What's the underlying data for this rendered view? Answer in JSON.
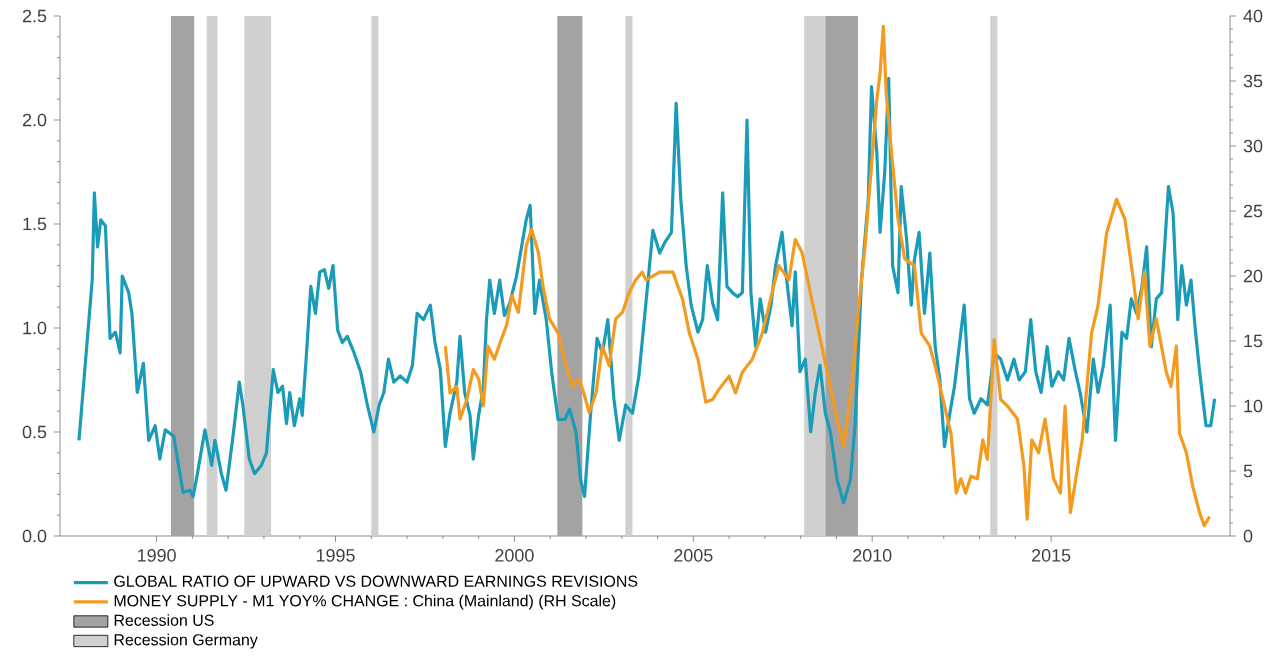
{
  "chart_data": {
    "type": "line",
    "xlim": [
      1987.3,
      2020
    ],
    "xticks": [
      1990,
      1995,
      2000,
      2005,
      2010,
      2015
    ],
    "ylim": [
      0,
      2.5
    ],
    "yticks": [
      {
        "value": 0,
        "label": "0.0"
      },
      {
        "value": 0.5,
        "label": "0.5"
      },
      {
        "value": 1,
        "label": "1.0"
      },
      {
        "value": 1.5,
        "label": "1.5"
      },
      {
        "value": 2,
        "label": "2.0"
      },
      {
        "value": 2.5,
        "label": "2.5"
      }
    ],
    "y2lim": [
      0,
      40
    ],
    "y2ticks": [
      0,
      5,
      10,
      15,
      20,
      25,
      30,
      35,
      40
    ],
    "legend": "bottom",
    "grid": false,
    "series": [
      {
        "name": "GLOBAL RATIO OF UPWARD VS DOWNWARD EARNINGS REVISIONS",
        "color": "#1a9bb8",
        "axis": "y",
        "x": [
          1987.83,
          1988.2,
          1988.26,
          1988.35,
          1988.44,
          1988.57,
          1988.7,
          1988.85,
          1988.98,
          1989.04,
          1989.22,
          1989.31,
          1989.46,
          1989.63,
          1989.78,
          1989.96,
          1990.09,
          1990.24,
          1990.48,
          1990.61,
          1990.74,
          1990.93,
          1991.02,
          1991.11,
          1991.35,
          1991.54,
          1991.63,
          1991.81,
          1991.94,
          1992.15,
          1992.31,
          1992.41,
          1992.59,
          1992.74,
          1992.93,
          1993.07,
          1993.26,
          1993.39,
          1993.52,
          1993.63,
          1993.72,
          1993.85,
          1994.0,
          1994.07,
          1994.19,
          1994.31,
          1994.44,
          1994.56,
          1994.69,
          1994.81,
          1994.93,
          1995.06,
          1995.19,
          1995.33,
          1995.52,
          1995.7,
          1995.89,
          1996.07,
          1996.22,
          1996.35,
          1996.48,
          1996.63,
          1996.81,
          1997.0,
          1997.15,
          1997.28,
          1997.46,
          1997.65,
          1997.78,
          1997.93,
          1998.07,
          1998.2,
          1998.39,
          1998.48,
          1998.61,
          1998.76,
          1998.85,
          1999.0,
          1999.13,
          1999.22,
          1999.31,
          1999.44,
          1999.59,
          1999.72,
          1999.87,
          2000.06,
          2000.33,
          2000.44,
          2000.57,
          2000.7,
          2000.89,
          2001.04,
          2001.22,
          2001.41,
          2001.54,
          2001.72,
          2001.85,
          2001.96,
          2002.13,
          2002.31,
          2002.46,
          2002.61,
          2002.78,
          2002.93,
          2003.11,
          2003.3,
          2003.48,
          2003.87,
          2004.06,
          2004.2,
          2004.39,
          2004.52,
          2004.65,
          2004.8,
          2004.94,
          2005.13,
          2005.26,
          2005.39,
          2005.54,
          2005.68,
          2005.82,
          2005.94,
          2006.09,
          2006.24,
          2006.37,
          2006.5,
          2006.61,
          2006.74,
          2006.87,
          2007.02,
          2007.17,
          2007.3,
          2007.48,
          2007.61,
          2007.76,
          2007.85,
          2007.98,
          2008.13,
          2008.28,
          2008.41,
          2008.54,
          2008.69,
          2008.83,
          2009.02,
          2009.2,
          2009.39,
          2009.52,
          2009.7,
          2009.89,
          2009.98,
          2010.13,
          2010.22,
          2010.35,
          2010.46,
          2010.57,
          2010.72,
          2010.81,
          2010.96,
          2011.09,
          2011.18,
          2011.31,
          2011.46,
          2011.61,
          2011.76,
          2011.89,
          2012.02,
          2012.17,
          2012.3,
          2012.43,
          2012.57,
          2012.72,
          2012.85,
          2013.04,
          2013.22,
          2013.41,
          2013.59,
          2013.78,
          2013.96,
          2014.11,
          2014.28,
          2014.43,
          2014.57,
          2014.72,
          2014.89,
          2015.02,
          2015.2,
          2015.35,
          2015.5,
          2015.68,
          2015.81,
          2016.0,
          2016.18,
          2016.31,
          2016.46,
          2016.65,
          2016.8,
          2016.98,
          2017.11,
          2017.24,
          2017.39,
          2017.54,
          2017.67,
          2017.8,
          2017.94,
          2018.09,
          2018.28,
          2018.41,
          2018.54,
          2018.65,
          2018.78,
          2018.91,
          2019.02,
          2019.15,
          2019.33,
          2019.46,
          2019.57
        ],
        "values": [
          0.46,
          1.23,
          1.65,
          1.39,
          1.52,
          1.49,
          0.95,
          0.98,
          0.88,
          1.25,
          1.17,
          1.07,
          0.69,
          0.83,
          0.46,
          0.53,
          0.37,
          0.51,
          0.48,
          0.34,
          0.21,
          0.22,
          0.19,
          0.27,
          0.51,
          0.34,
          0.46,
          0.3,
          0.22,
          0.5,
          0.74,
          0.63,
          0.37,
          0.3,
          0.34,
          0.4,
          0.8,
          0.69,
          0.72,
          0.54,
          0.69,
          0.53,
          0.66,
          0.58,
          0.88,
          1.2,
          1.07,
          1.27,
          1.28,
          1.19,
          1.3,
          0.99,
          0.93,
          0.96,
          0.88,
          0.79,
          0.63,
          0.5,
          0.63,
          0.69,
          0.85,
          0.74,
          0.77,
          0.74,
          0.82,
          1.07,
          1.04,
          1.11,
          0.93,
          0.8,
          0.43,
          0.59,
          0.74,
          0.96,
          0.69,
          0.58,
          0.37,
          0.58,
          0.71,
          1.04,
          1.23,
          1.07,
          1.23,
          1.06,
          1.12,
          1.25,
          1.52,
          1.59,
          1.07,
          1.23,
          1.04,
          0.79,
          0.56,
          0.56,
          0.61,
          0.5,
          0.27,
          0.19,
          0.59,
          0.95,
          0.88,
          1.04,
          0.66,
          0.46,
          0.63,
          0.59,
          0.77,
          1.47,
          1.36,
          1.41,
          1.46,
          2.08,
          1.62,
          1.3,
          1.11,
          0.98,
          1.04,
          1.3,
          1.12,
          1.04,
          1.65,
          1.2,
          1.17,
          1.15,
          1.17,
          2.0,
          1.17,
          0.91,
          1.14,
          0.98,
          1.11,
          1.3,
          1.46,
          1.23,
          1.01,
          1.27,
          0.79,
          0.85,
          0.5,
          0.69,
          0.82,
          0.59,
          0.5,
          0.27,
          0.16,
          0.27,
          0.53,
          1.23,
          1.62,
          2.16,
          1.84,
          1.46,
          1.75,
          2.2,
          1.3,
          1.17,
          1.68,
          1.43,
          1.11,
          1.33,
          1.46,
          1.07,
          1.36,
          0.91,
          0.75,
          0.43,
          0.59,
          0.72,
          0.91,
          1.11,
          0.66,
          0.59,
          0.66,
          0.63,
          0.88,
          0.85,
          0.75,
          0.85,
          0.75,
          0.79,
          1.04,
          0.79,
          0.69,
          0.91,
          0.72,
          0.79,
          0.75,
          0.95,
          0.79,
          0.69,
          0.5,
          0.85,
          0.69,
          0.82,
          1.11,
          0.46,
          0.98,
          0.95,
          1.14,
          1.07,
          1.2,
          1.39,
          0.91,
          1.14,
          1.17,
          1.68,
          1.55,
          1.04,
          1.3,
          1.11,
          1.23,
          1.01,
          0.79,
          0.53,
          0.53,
          0.66
        ]
      },
      {
        "name": "MONEY SUPPLY - M1 YOY% CHANGE : China (Mainland) (RH Scale)",
        "color": "#f39a1f",
        "axis": "y2",
        "x": [
          1998.07,
          1998.2,
          1998.39,
          1998.48,
          1998.67,
          1998.85,
          1999.0,
          1999.13,
          1999.26,
          1999.44,
          1999.63,
          1999.78,
          1999.93,
          2000.11,
          2000.33,
          2000.48,
          2000.67,
          2000.8,
          2000.98,
          2001.22,
          2001.44,
          2001.63,
          2001.81,
          2001.96,
          2002.09,
          2002.28,
          2002.46,
          2002.65,
          2002.83,
          2003.02,
          2003.2,
          2003.39,
          2003.57,
          2003.68,
          2004.06,
          2004.43,
          2004.7,
          2004.89,
          2005.13,
          2005.35,
          2005.54,
          2005.72,
          2006.0,
          2006.18,
          2006.37,
          2006.65,
          2006.93,
          2007.2,
          2007.39,
          2007.67,
          2007.85,
          2008.04,
          2008.31,
          2008.59,
          2008.83,
          2009.06,
          2009.2,
          2009.43,
          2009.61,
          2009.8,
          2009.98,
          2010.13,
          2010.22,
          2010.31,
          2010.39,
          2010.54,
          2010.72,
          2010.91,
          2011.18,
          2011.37,
          2011.61,
          2011.8,
          2012.02,
          2012.2,
          2012.35,
          2012.48,
          2012.61,
          2012.76,
          2012.94,
          2013.09,
          2013.22,
          2013.41,
          2013.59,
          2013.78,
          2014.06,
          2014.24,
          2014.33,
          2014.46,
          2014.65,
          2014.83,
          2015.07,
          2015.26,
          2015.39,
          2015.54,
          2015.69,
          2015.87,
          2016.13,
          2016.31,
          2016.55,
          2016.83,
          2017.06,
          2017.3,
          2017.43,
          2017.61,
          2017.76,
          2017.94,
          2018.22,
          2018.35,
          2018.5,
          2018.59,
          2018.78,
          2018.96,
          2019.15,
          2019.28,
          2019.43
        ],
        "values": [
          14.6,
          11.0,
          11.5,
          9.0,
          10.5,
          12.8,
          12.1,
          10.0,
          14.6,
          13.6,
          15.1,
          16.2,
          18.5,
          17.2,
          22.3,
          23.6,
          21.8,
          19.2,
          16.7,
          15.6,
          13.1,
          11.5,
          12.1,
          10.8,
          9.5,
          11.0,
          14.6,
          13.1,
          16.7,
          17.2,
          18.7,
          19.7,
          20.3,
          19.7,
          20.3,
          20.3,
          18.2,
          15.6,
          13.6,
          10.3,
          10.5,
          11.3,
          12.3,
          11.0,
          12.6,
          13.6,
          15.6,
          18.7,
          20.8,
          19.7,
          22.8,
          21.8,
          18.2,
          14.6,
          11.5,
          8.5,
          6.9,
          11.5,
          17.2,
          22.3,
          28.5,
          33.6,
          35.6,
          39.2,
          34.1,
          29.5,
          24.4,
          21.3,
          20.8,
          15.6,
          14.6,
          12.6,
          10.0,
          7.9,
          3.3,
          4.4,
          3.3,
          4.6,
          4.4,
          7.4,
          5.9,
          15.1,
          10.5,
          10.0,
          9.0,
          5.4,
          1.3,
          7.4,
          6.4,
          9.0,
          4.4,
          3.3,
          10.0,
          1.8,
          4.4,
          7.4,
          15.6,
          17.7,
          23.3,
          25.9,
          24.4,
          19.7,
          16.7,
          20.3,
          14.6,
          16.7,
          12.6,
          11.5,
          14.6,
          7.9,
          6.4,
          3.8,
          1.8,
          0.8,
          1.5
        ]
      }
    ],
    "bands": [
      {
        "axis": "x",
        "from": 1990.4,
        "to": 1991.05,
        "label": "Recession US",
        "color": "#a3a3a3"
      },
      {
        "axis": "x",
        "from": 2001.2,
        "to": 2001.9,
        "color": "#a3a3a3"
      },
      {
        "axis": "x",
        "from": 2008.1,
        "to": 2009.6,
        "label": "Recession Germany",
        "color": "#d0d0d0"
      },
      {
        "axis": "x",
        "from": 2008.7,
        "to": 2009.6,
        "color": "#a3a3a3"
      },
      {
        "axis": "x",
        "from": 1991.4,
        "to": 1991.7,
        "color": "#d0d0d0"
      },
      {
        "axis": "x",
        "from": 1992.45,
        "to": 1993.2,
        "color": "#d0d0d0"
      },
      {
        "axis": "x",
        "from": 1996.0,
        "to": 1996.2,
        "color": "#d0d0d0"
      },
      {
        "axis": "x",
        "from": 2003.1,
        "to": 2003.3,
        "color": "#d0d0d0"
      },
      {
        "axis": "x",
        "from": 2013.3,
        "to": 2013.5,
        "color": "#d0d0d0"
      }
    ]
  }
}
